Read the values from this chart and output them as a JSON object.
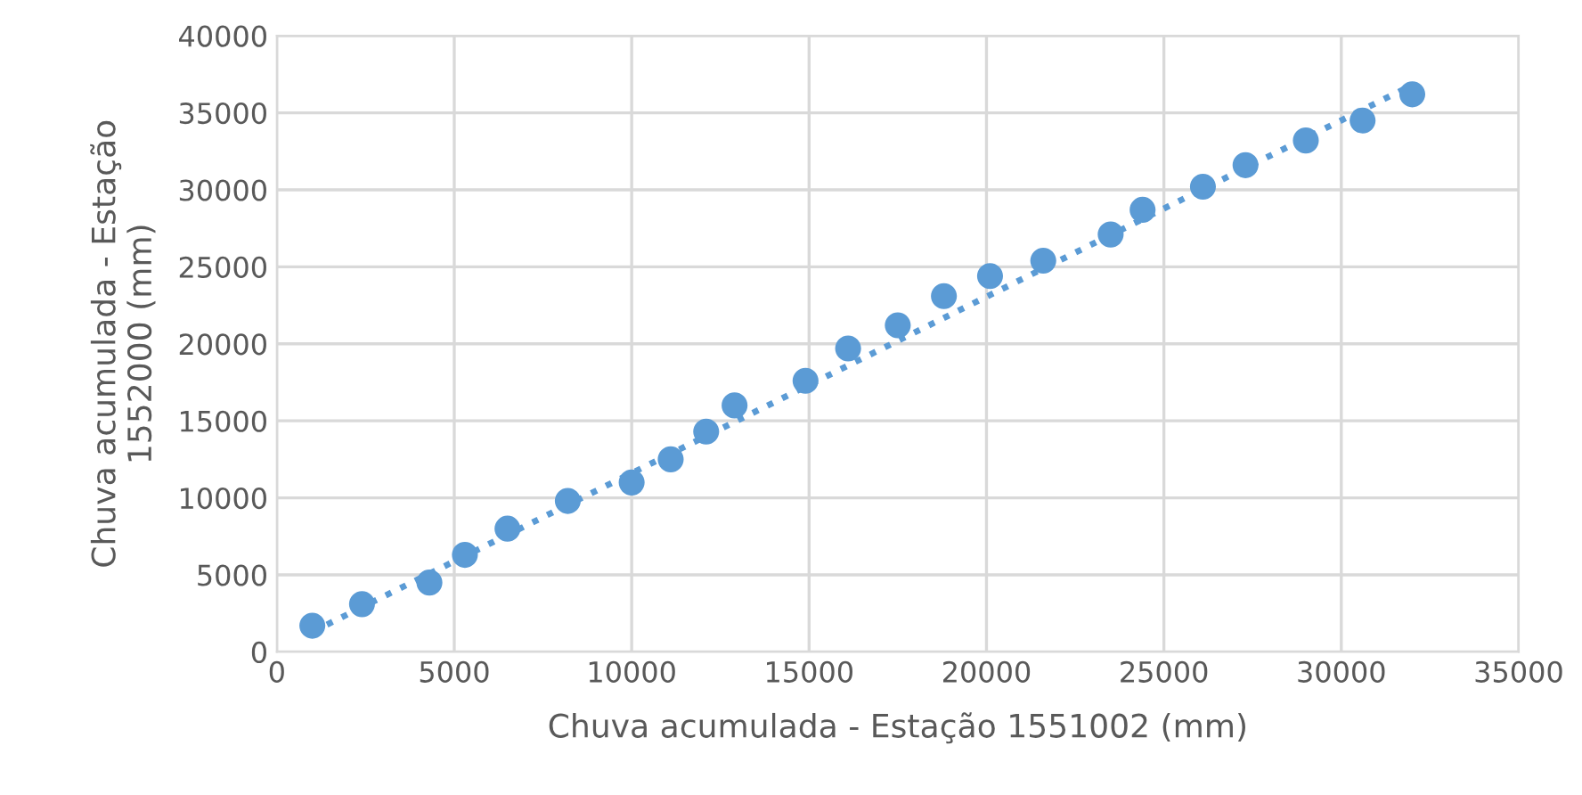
{
  "chart_data": {
    "type": "scatter",
    "xlabel": "Chuva acumulada - Estação 1551002 (mm)",
    "ylabel": "Chuva acumulada - Estação\n1552000 (mm)",
    "series": [
      {
        "color": "#5b9bd5",
        "marker": "circle",
        "x": [
          1000,
          2400,
          4300,
          5300,
          6500,
          8200,
          10000,
          11100,
          12100,
          12900,
          14900,
          16100,
          17500,
          18800,
          20100,
          21600,
          23500,
          24400,
          26100,
          27300,
          29000,
          30600,
          32000
        ],
        "values": [
          1700,
          3100,
          4500,
          6300,
          8000,
          9800,
          11000,
          12500,
          14300,
          16000,
          17600,
          19700,
          21200,
          23100,
          24400,
          25400,
          27100,
          28700,
          30200,
          31600,
          33200,
          34500,
          36200
        ]
      },
      {
        "type": "line",
        "color": "#5b9bd5",
        "line_style": "dotted",
        "marker": "none",
        "x": [
          1000,
          32000
        ],
        "values": [
          1300,
          36800
        ]
      }
    ],
    "xlim": [
      0,
      35000
    ],
    "xticks": [
      0,
      5000,
      10000,
      15000,
      20000,
      25000,
      30000,
      35000
    ],
    "ylim": [
      0,
      40000
    ],
    "yticks": [
      0,
      5000,
      10000,
      15000,
      20000,
      25000,
      30000,
      35000,
      40000
    ],
    "grid": true,
    "legend": false
  }
}
